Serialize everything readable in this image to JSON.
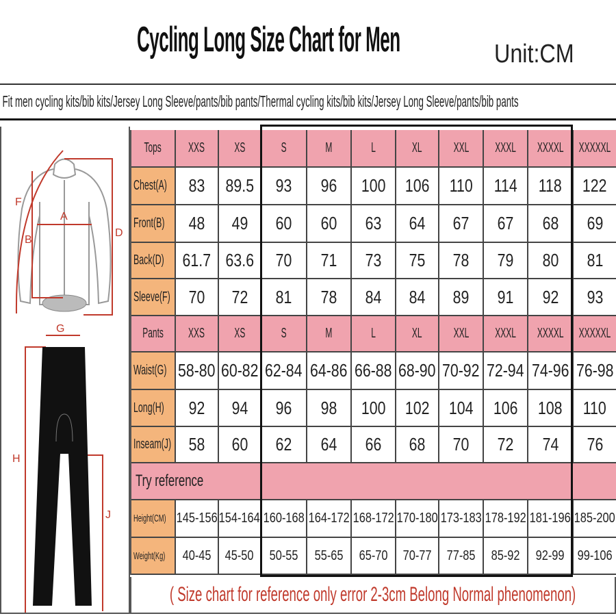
{
  "title": "Cycling Long Size Chart for Men",
  "unit": "Unit:CM",
  "fit_text": "Fit men cycling kits/bib kits/Jersey Long Sleeve/pants/bib pants/Thermal cycling kits/bib kits/Jersey Long Sleeve/pants/bib pants",
  "colors": {
    "header_pink": "#f0a3ae",
    "label_orange": "#f4b57c",
    "measure_red": "#c0392b"
  },
  "figure": {
    "jersey_labels": [
      "F",
      "A",
      "B",
      "D",
      "G"
    ],
    "pants_labels": [
      "H",
      "J"
    ]
  },
  "sizes": [
    "XXS",
    "XS",
    "S",
    "M",
    "L",
    "XL",
    "XXL",
    "XXXL",
    "XXXXL",
    "XXXXXL"
  ],
  "tops": {
    "header": "Tops",
    "rows": [
      {
        "label": "Chest(A)",
        "values": [
          "83",
          "89.5",
          "93",
          "96",
          "100",
          "106",
          "110",
          "114",
          "118",
          "122"
        ]
      },
      {
        "label": "Front(B)",
        "values": [
          "48",
          "49",
          "60",
          "60",
          "63",
          "64",
          "67",
          "67",
          "68",
          "69"
        ]
      },
      {
        "label": "Back(D)",
        "values": [
          "61.7",
          "63.6",
          "70",
          "71",
          "73",
          "75",
          "78",
          "79",
          "80",
          "81"
        ]
      },
      {
        "label": "Sleeve(F)",
        "values": [
          "70",
          "72",
          "81",
          "78",
          "84",
          "84",
          "89",
          "91",
          "92",
          "93"
        ]
      }
    ]
  },
  "pants": {
    "header": "Pants",
    "rows": [
      {
        "label": "Waist(G)",
        "values": [
          "58-80",
          "60-82",
          "62-84",
          "64-86",
          "66-88",
          "68-90",
          "70-92",
          "72-94",
          "74-96",
          "76-98"
        ]
      },
      {
        "label": "Long(H)",
        "values": [
          "92",
          "94",
          "96",
          "98",
          "100",
          "102",
          "104",
          "106",
          "108",
          "110"
        ]
      },
      {
        "label": "Inseam(J)",
        "values": [
          "58",
          "60",
          "62",
          "64",
          "66",
          "68",
          "70",
          "72",
          "74",
          "76"
        ]
      }
    ]
  },
  "reference": {
    "header": "Try reference",
    "rows": [
      {
        "label": "Height(CM)",
        "values": [
          "145-156",
          "154-164",
          "160-168",
          "164-172",
          "168-172",
          "170-180",
          "173-183",
          "178-192",
          "181-196",
          "185-200"
        ]
      },
      {
        "label": "Weight(Kg)",
        "values": [
          "40-45",
          "45-50",
          "50-55",
          "55-65",
          "65-70",
          "70-77",
          "77-85",
          "85-92",
          "92-99",
          "99-106"
        ]
      }
    ]
  },
  "note": "( Size chart for reference only  error 2-3cm  Belong Normal phenomenon)"
}
